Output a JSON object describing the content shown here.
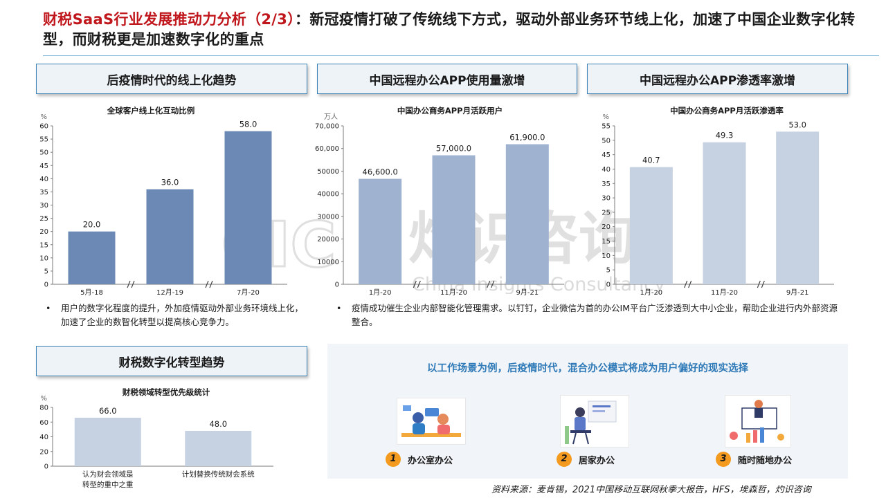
{
  "header": {
    "title_red": "财税SaaS行业发展推动力分析（2/3）",
    "title_rest": "：新冠疫情打破了传统线下方式，驱动外部业务环节线上化，加速了中国企业数字化转型，而财税更是加速数字化的重点"
  },
  "sections": {
    "online_trend": "后疫情时代的线上化趋势",
    "app_usage": "中国远程办公APP使用量激增",
    "app_penetration": "中国远程办公APP渗透率激增",
    "finance_trend": "财税数字化转型趋势"
  },
  "notes": {
    "online": "用户的数字化程度的提升，外加疫情驱动外部业务环境线上化，加速了企业的数智化转型以提高核心竞争力。",
    "app": "疫情成功催生企业内部智能化管理需求。以钉钉，企业微信为首的办公IM平台广泛渗透到大中小企业，帮助企业进行内外部资源整合。"
  },
  "scenarios": {
    "title": "以工作场景为例，后疫情时代，混合办公模式将成为用户偏好的现实选择",
    "items": [
      {
        "num": "1",
        "label": "办公室办公"
      },
      {
        "num": "2",
        "label": "居家办公"
      },
      {
        "num": "3",
        "label": "随时随地办公"
      }
    ]
  },
  "source": "资料来源：麦肯锡，2021中国移动互联网秋季大报告，HFS，埃森哲，灼识咨询",
  "watermark": {
    "cn": "灼识咨询",
    "en": "China Insights Consultancy",
    "logo": "CIC"
  },
  "colors": {
    "red": "#c0171d",
    "bar_dark": "#6c89b6",
    "bar_mid": "#9fb3d0",
    "bar_light": "#c6d1e2",
    "accent_blue": "#2e79b7",
    "badge": "#f39a1f"
  },
  "chart_data": [
    {
      "type": "bar",
      "title": "全球客户线上化互动比例",
      "ylabel": "%",
      "categories": [
        "5月-18",
        "12月-19",
        "7月-20"
      ],
      "values": [
        20.0,
        36.0,
        58.0
      ],
      "value_labels": [
        "20.0",
        "36.0",
        "58.0"
      ],
      "ylim": [
        0,
        60
      ],
      "yticks": [
        "0",
        "5",
        "10",
        "15",
        "20",
        "25",
        "30",
        "35",
        "40",
        "45",
        "50",
        "55",
        "60"
      ],
      "axis_breaks": true
    },
    {
      "type": "bar",
      "title": "中国办公商务APP月活跃用户",
      "ylabel": "万人",
      "categories": [
        "1月-20",
        "11月-20",
        "9月-21"
      ],
      "values": [
        46600.0,
        57000.0,
        61900.0
      ],
      "value_labels": [
        "46,600.0",
        "57,000.0",
        "61,900.0"
      ],
      "ylim": [
        0,
        70000
      ],
      "yticks": [
        "0",
        "10000",
        "20000",
        "30000",
        "40000",
        "50000",
        "60,000",
        "70,000"
      ],
      "axis_breaks": true
    },
    {
      "type": "bar",
      "title": "中国办公商务APP月活跃渗透率",
      "ylabel": "%",
      "categories": [
        "1月-20",
        "11月-20",
        "9月-21"
      ],
      "values": [
        40.7,
        49.3,
        53.0
      ],
      "value_labels": [
        "40.7",
        "49.3",
        "53.0"
      ],
      "ylim": [
        0,
        55
      ],
      "yticks": [
        "0",
        "5",
        "10",
        "15",
        "20",
        "25",
        "30",
        "35",
        "40",
        "45",
        "50",
        "55"
      ],
      "axis_breaks": true
    },
    {
      "type": "bar",
      "title": "财税领域转型优先级统计",
      "ylabel": "%",
      "categories": [
        "认为财会领域是\n转型的重中之重",
        "计划替换传统财会系统"
      ],
      "values": [
        66.0,
        48.0
      ],
      "value_labels": [
        "66.0",
        "48.0"
      ],
      "ylim": [
        0,
        80
      ],
      "yticks": [
        "0",
        "20",
        "40",
        "60",
        "80"
      ],
      "axis_breaks": false
    }
  ]
}
